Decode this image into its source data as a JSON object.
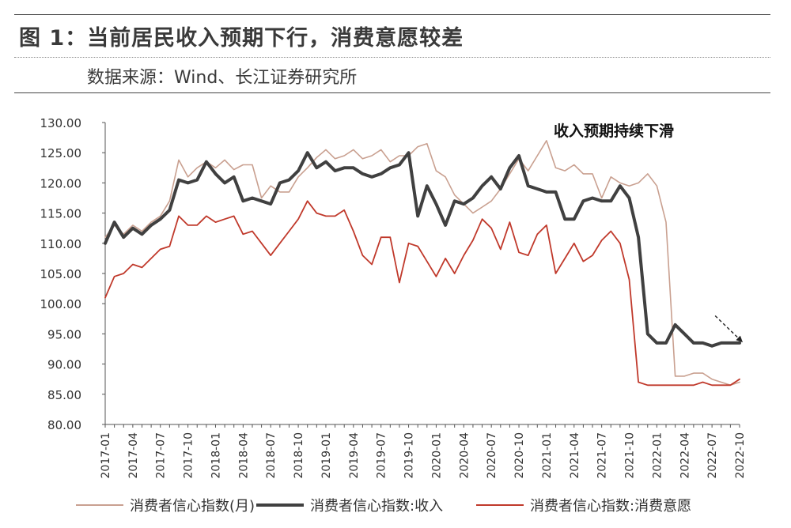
{
  "header": {
    "title": "图 1：当前居民收入预期下行，消费意愿较差",
    "source": "数据来源：Wind、长江证券研究所"
  },
  "chart_data": {
    "type": "line",
    "annotation": "收入预期持续下滑",
    "ylim": [
      80,
      130
    ],
    "yticks": [
      "80.00",
      "85.00",
      "90.00",
      "95.00",
      "100.00",
      "105.00",
      "110.00",
      "115.00",
      "120.00",
      "125.00",
      "130.00"
    ],
    "xtick_labels": [
      "2017-01",
      "2017-04",
      "2017-07",
      "2017-10",
      "2018-01",
      "2018-04",
      "2018-07",
      "2018-10",
      "2019-01",
      "2019-04",
      "2019-07",
      "2019-10",
      "2020-01",
      "2020-04",
      "2020-07",
      "2020-10",
      "2021-01",
      "2021-04",
      "2021-07",
      "2021-10",
      "2022-01",
      "2022-04",
      "2022-07",
      "2022-10"
    ],
    "x": [
      "2017-01",
      "2017-02",
      "2017-03",
      "2017-04",
      "2017-05",
      "2017-06",
      "2017-07",
      "2017-08",
      "2017-09",
      "2017-10",
      "2017-11",
      "2017-12",
      "2018-01",
      "2018-02",
      "2018-03",
      "2018-04",
      "2018-05",
      "2018-06",
      "2018-07",
      "2018-08",
      "2018-09",
      "2018-10",
      "2018-11",
      "2018-12",
      "2019-01",
      "2019-02",
      "2019-03",
      "2019-04",
      "2019-05",
      "2019-06",
      "2019-07",
      "2019-08",
      "2019-09",
      "2019-10",
      "2019-11",
      "2019-12",
      "2020-01",
      "2020-02",
      "2020-03",
      "2020-04",
      "2020-05",
      "2020-06",
      "2020-07",
      "2020-08",
      "2020-09",
      "2020-10",
      "2020-11",
      "2020-12",
      "2021-01",
      "2021-02",
      "2021-03",
      "2021-04",
      "2021-05",
      "2021-06",
      "2021-07",
      "2021-08",
      "2021-09",
      "2021-10",
      "2021-11",
      "2021-12",
      "2022-01",
      "2022-02",
      "2022-03",
      "2022-04",
      "2022-05",
      "2022-06",
      "2022-07",
      "2022-08",
      "2022-09",
      "2022-10"
    ],
    "series": [
      {
        "name": "消费者信心指数(月)",
        "color": "#c9a090",
        "width": 1.6,
        "values": [
          111.0,
          113.0,
          111.5,
          113.0,
          112.0,
          113.5,
          114.5,
          117.0,
          123.8,
          121.0,
          122.5,
          123.5,
          122.5,
          123.8,
          122.2,
          123.0,
          123.0,
          117.5,
          119.5,
          118.5,
          118.5,
          121.0,
          122.5,
          124.2,
          125.5,
          124.0,
          124.5,
          125.5,
          124.0,
          124.5,
          125.5,
          123.5,
          124.5,
          124.5,
          126.0,
          126.5,
          122.0,
          121.0,
          118.0,
          116.5,
          115.0,
          116.0,
          117.0,
          119.0,
          121.5,
          124.0,
          122.0,
          124.5,
          127.0,
          122.5,
          122.0,
          123.0,
          121.5,
          121.5,
          117.5,
          121.0,
          120.0,
          119.5,
          120.0,
          121.5,
          119.5,
          113.5,
          88.0,
          88.0,
          88.5,
          88.5,
          87.5,
          87.0,
          86.5,
          87.0
        ]
      },
      {
        "name": "消费者信心指数:收入",
        "color": "#404040",
        "width": 4.0,
        "values": [
          110.0,
          113.5,
          111.0,
          112.5,
          111.5,
          113.0,
          114.0,
          115.5,
          120.5,
          120.0,
          120.5,
          123.5,
          121.5,
          120.0,
          121.0,
          117.0,
          117.5,
          117.0,
          116.5,
          120.0,
          120.5,
          122.0,
          125.0,
          122.5,
          123.5,
          122.0,
          122.5,
          122.5,
          121.5,
          121.0,
          121.5,
          122.5,
          123.0,
          125.0,
          114.5,
          119.5,
          116.5,
          113.0,
          117.0,
          116.5,
          117.5,
          119.5,
          121.0,
          119.0,
          122.5,
          124.5,
          119.5,
          119.0,
          118.5,
          118.5,
          114.0,
          114.0,
          117.0,
          117.5,
          117.0,
          117.0,
          119.5,
          117.5,
          111.0,
          95.0,
          93.5,
          93.5,
          96.5,
          95.0,
          93.5,
          93.5,
          93.0,
          93.5,
          93.5,
          93.5
        ]
      },
      {
        "name": "消费者信心指数:消费意愿",
        "color": "#c0392b",
        "width": 1.8,
        "values": [
          101.0,
          104.5,
          105.0,
          106.5,
          106.0,
          107.5,
          109.0,
          109.5,
          114.5,
          113.0,
          113.0,
          114.5,
          113.5,
          114.0,
          114.5,
          111.5,
          112.0,
          110.0,
          108.0,
          110.0,
          112.0,
          114.0,
          117.0,
          115.0,
          114.5,
          114.5,
          115.5,
          112.0,
          108.0,
          106.5,
          111.0,
          111.0,
          103.5,
          110.0,
          109.5,
          107.0,
          104.5,
          107.5,
          105.0,
          108.0,
          110.5,
          114.0,
          112.5,
          109.0,
          113.5,
          108.5,
          108.0,
          111.5,
          113.0,
          105.0,
          107.5,
          110.0,
          107.0,
          108.0,
          110.5,
          112.0,
          110.0,
          104.0,
          87.0,
          86.5,
          86.5,
          86.5,
          86.5,
          86.5,
          86.5,
          87.0,
          86.5,
          86.5,
          86.5,
          87.5
        ]
      }
    ]
  }
}
